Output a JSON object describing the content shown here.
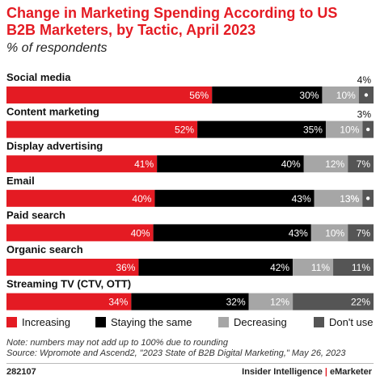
{
  "header": {
    "title": "Change in Marketing Spending According to US B2B Marketers, by Tactic, April 2023",
    "subtitle": "% of respondents"
  },
  "chart_data": {
    "type": "bar",
    "orientation": "horizontal",
    "stacked": true,
    "categories": [
      "Social media",
      "Content marketing",
      "Display advertising",
      "Email",
      "Paid search",
      "Organic search",
      "Streaming TV (CTV, OTT)"
    ],
    "series": [
      {
        "name": "Increasing",
        "color": "#e41b23",
        "values": [
          56,
          52,
          41,
          40,
          40,
          36,
          34
        ],
        "labels": [
          "56%",
          "52%",
          "41%",
          "40%",
          "40%",
          "36%",
          "34%"
        ]
      },
      {
        "name": "Staying the same",
        "color": "#000000",
        "values": [
          30,
          35,
          40,
          43,
          43,
          42,
          32
        ],
        "labels": [
          "30%",
          "35%",
          "40%",
          "43%",
          "43%",
          "42%",
          "32%"
        ]
      },
      {
        "name": "Decreasing",
        "color": "#a6a6a6",
        "values": [
          10,
          10,
          12,
          13,
          10,
          11,
          12
        ],
        "labels": [
          "10%",
          "10%",
          "12%",
          "13%",
          "10%",
          "11%",
          "12%"
        ]
      },
      {
        "name": "Don't use",
        "color": "#555555",
        "values": [
          4,
          3,
          7,
          3,
          7,
          11,
          22
        ],
        "labels": [
          "4%",
          "3%",
          "7%",
          "3%",
          "7%",
          "11%",
          "22%"
        ]
      }
    ],
    "legend_position": "bottom",
    "grid": false
  },
  "notes": {
    "note": "Note: numbers may not add up to 100% due to rounding",
    "source": "Source: Wpromote and Ascend2, \"2023 State of B2B Digital Marketing,\" May 26, 2023"
  },
  "footer": {
    "id": "282107",
    "brand_left": "Insider Intelligence",
    "brand_sep": " | ",
    "brand_right": "eMarketer"
  }
}
